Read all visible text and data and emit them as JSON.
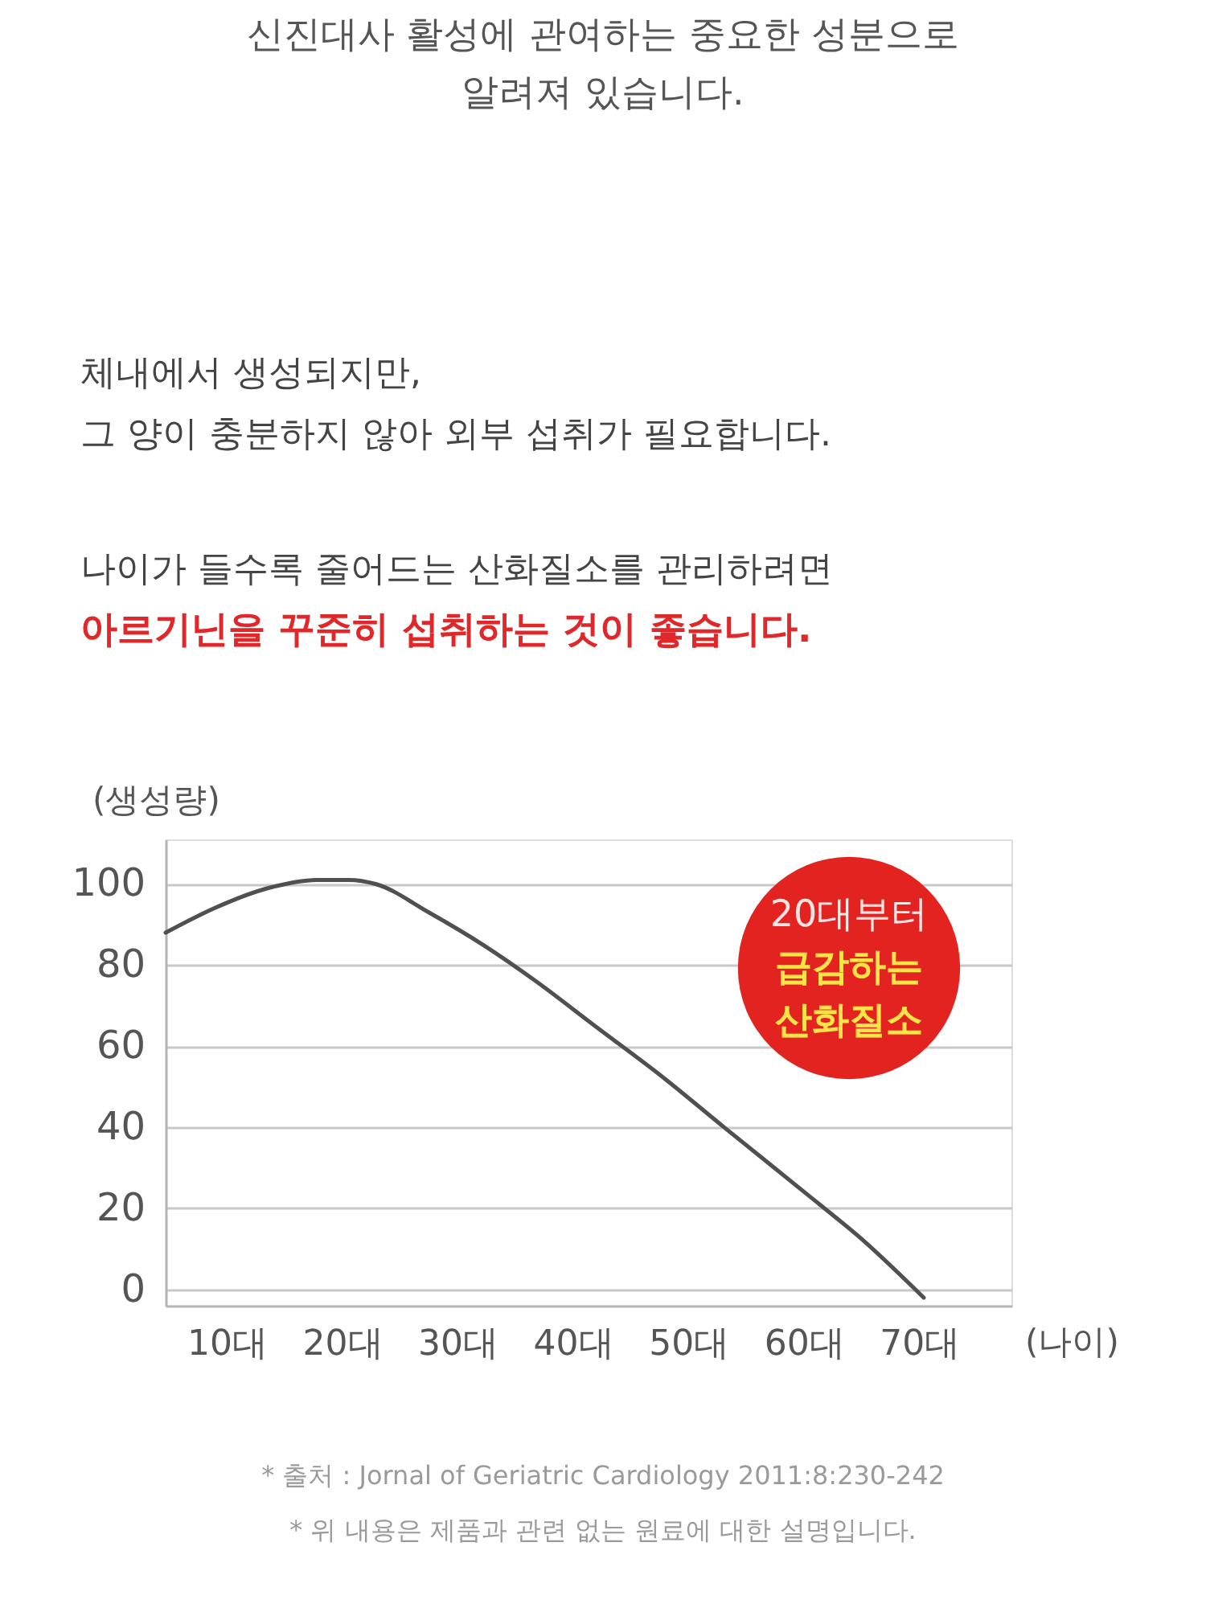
{
  "chart_data": {
    "type": "line",
    "title": "신진대사 활성에 관여하는 중요한 성분으로\n알려져 있습니다.",
    "subtitle": "체내에서 생성되지만,\n그 양이 충분하지 않아 외부 섭취가 필요합니다.",
    "annotations": [
      "나이가 들수록 줄어드는 산화질소를 관리하려면",
      "아르기닌을 꾸준히 섭취하는 것이 좋습니다.",
      "20대부터\n급감하는\n산화질소",
      "* 출처 : Jornal of Geriatric Cardiology 2011:8:230-242",
      "* 위 내용은 제품과 관련 없는 원료에 대한 설명입니다."
    ],
    "xlabel": "(나이)",
    "ylabel": "(생성량)",
    "x": [
      4.7,
      8.9,
      13.6,
      17.8,
      20.6,
      22.9,
      27.5,
      32.2,
      36.8,
      41.9,
      47.5,
      53.1,
      60.5,
      65.2,
      70.4
    ],
    "values": [
      88,
      94,
      99,
      101,
      101,
      100,
      93,
      85,
      76,
      65,
      53,
      40,
      23,
      12,
      -2
    ],
    "color": "#505050",
    "xlim": [
      4.7,
      78
    ],
    "xticks": [
      {
        "value": 10,
        "label": "10대"
      },
      {
        "value": 20,
        "label": "20대"
      },
      {
        "value": 30,
        "label": "30대"
      },
      {
        "value": 40,
        "label": "40대"
      },
      {
        "value": 50,
        "label": "50대"
      },
      {
        "value": 60,
        "label": "60대"
      },
      {
        "value": 70,
        "label": "70대"
      }
    ],
    "ylim": [
      -4,
      111
    ],
    "yticks": [
      0,
      20,
      40,
      60,
      80,
      100
    ],
    "grid": "y",
    "line_style": "solid"
  }
}
